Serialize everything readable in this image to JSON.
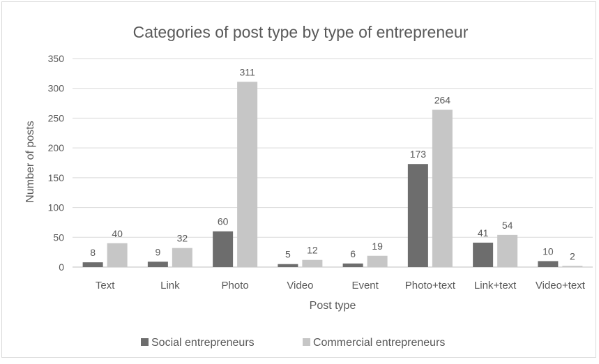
{
  "chart_data": {
    "type": "bar",
    "title": "Categories of post type by type of entrepreneur",
    "xlabel": "Post type",
    "ylabel": "Number of posts",
    "categories": [
      "Text",
      "Link",
      "Photo",
      "Video",
      "Event",
      "Photo+text",
      "Link+text",
      "Video+text"
    ],
    "series": [
      {
        "name": "Social entrepreneurs",
        "color": "#6d6d6d",
        "values": [
          8,
          9,
          60,
          5,
          6,
          173,
          41,
          10
        ]
      },
      {
        "name": "Commercial entrepreneurs",
        "color": "#c6c6c6",
        "values": [
          40,
          32,
          311,
          12,
          19,
          264,
          54,
          2
        ]
      }
    ],
    "ylim": [
      0,
      350
    ],
    "yticks": [
      0,
      50,
      100,
      150,
      200,
      250,
      300,
      350
    ],
    "grid": true,
    "legend_position": "bottom",
    "data_labels": true
  }
}
